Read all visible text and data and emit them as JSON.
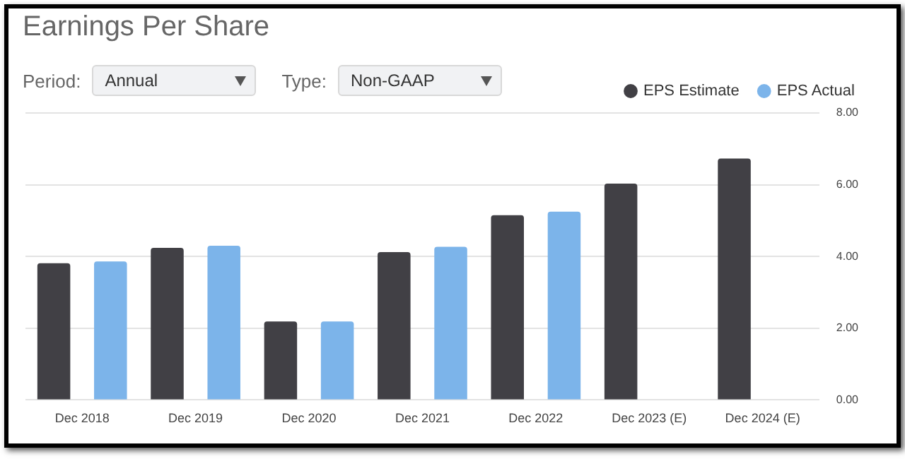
{
  "chart_data": {
    "type": "bar",
    "title": "Earnings Per Share",
    "annotations": [
      "Period:",
      "Annual",
      "Type:",
      "Non-GAAP"
    ],
    "categories": [
      "Dec 2018",
      "Dec 2019",
      "Dec 2020",
      "Dec 2021",
      "Dec 2022",
      "Dec 2023 (E)",
      "Dec 2024 (E)"
    ],
    "series": [
      {
        "name": "EPS Estimate",
        "color": "#414045",
        "values": [
          3.81,
          4.24,
          2.19,
          4.12,
          5.15,
          6.03,
          6.73
        ]
      },
      {
        "name": "EPS Actual",
        "color": "#7cb4ea",
        "values": [
          3.86,
          4.3,
          2.19,
          4.27,
          5.25,
          null,
          null
        ]
      }
    ],
    "ylim": [
      0,
      8
    ],
    "yticks": [
      {
        "value": 0,
        "label": "0.00"
      },
      {
        "value": 2,
        "label": "2.00"
      },
      {
        "value": 4,
        "label": "4.00"
      },
      {
        "value": 6,
        "label": "6.00"
      },
      {
        "value": 8,
        "label": "8.00"
      }
    ],
    "grid": "y",
    "legend": "top right"
  }
}
